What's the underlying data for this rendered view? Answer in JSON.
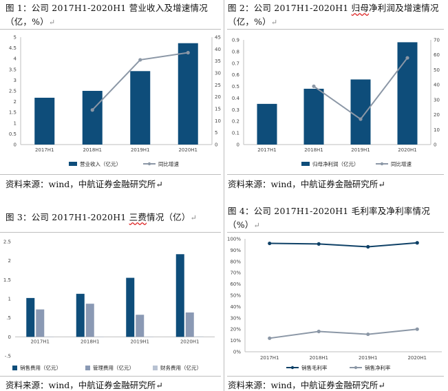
{
  "captions": {
    "fig1": {
      "text": "图 1：公司 2017H1-2020H1 营业收入及增速情况",
      "line2": "（亿，%）"
    },
    "fig2": {
      "pre": "图 2：公司 2017H1-2020H1 ",
      "squig": "归母",
      "post": "净利润及增速情况",
      "line2": "（亿，%）"
    },
    "fig3": {
      "pre": "图 3：公司 2017H1-2020H1 ",
      "squig": "三费",
      "post": "情况（亿）"
    },
    "fig4": {
      "text": "图 4：公司 2017H1-2020H1 毛利率及净利率情况",
      "line2": "（%）"
    },
    "return_mark": "↵"
  },
  "sources": {
    "fig1": "资料来源：wind，中航证券金融研究所",
    "fig2": "资料来源：wind，中航证券金融研究所",
    "fig3": "资料来源：wind，中航证券金融研究所",
    "fig4": "资料来源：wind，中航证券金融研究所"
  },
  "colors": {
    "bar": "#0e4d7a",
    "line": "#8b97a6",
    "bar_light": "#8a99b4",
    "dark_line": "#0e4066"
  },
  "chart_data": [
    {
      "id": "fig1",
      "type": "bar+line",
      "categories": [
        "2017H1",
        "2018H1",
        "2019H1",
        "2020H1"
      ],
      "series": [
        {
          "name": "营业收入（亿元）",
          "axis": "left",
          "kind": "bar",
          "values": [
            2.18,
            2.5,
            3.42,
            4.72
          ]
        },
        {
          "name": "同比增速",
          "axis": "right",
          "kind": "line",
          "values": [
            null,
            14.5,
            35.5,
            38.5
          ]
        }
      ],
      "left": {
        "min": 0,
        "max": 5,
        "ticks": [
          "0",
          "0.5",
          "1",
          "1.5",
          "2",
          "2.5",
          "3",
          "3.5",
          "4",
          "4.5",
          "5"
        ]
      },
      "right": {
        "min": 0,
        "max": 45,
        "ticks": [
          "0",
          "5",
          "10",
          "15",
          "20",
          "25",
          "30",
          "35",
          "40",
          "45"
        ]
      }
    },
    {
      "id": "fig2",
      "type": "bar+line",
      "categories": [
        "2017H1",
        "2018H1",
        "2019H1",
        "2020H1"
      ],
      "series": [
        {
          "name": "归母净利润（亿元）",
          "axis": "left",
          "kind": "bar",
          "values": [
            0.35,
            0.48,
            0.56,
            0.88
          ]
        },
        {
          "name": "同比增速",
          "axis": "right",
          "kind": "line",
          "values": [
            null,
            39,
            17,
            58
          ]
        }
      ],
      "left": {
        "min": 0,
        "max": 0.9,
        "ticks": [
          "0",
          "0.1",
          "0.2",
          "0.3",
          "0.4",
          "0.5",
          "0.6",
          "0.7",
          "0.8",
          "0.9"
        ]
      },
      "right": {
        "min": 0,
        "max": 70,
        "ticks": [
          "0",
          "10",
          "20",
          "30",
          "40",
          "50",
          "60",
          "70"
        ]
      }
    },
    {
      "id": "fig3",
      "type": "bar",
      "categories": [
        "2017H1",
        "2018H1",
        "2019H1",
        "2020H1"
      ],
      "series": [
        {
          "name": "销售费用（亿元）",
          "values": [
            1.02,
            1.13,
            1.55,
            2.17
          ]
        },
        {
          "name": "管理费用（亿元）",
          "values": [
            0.72,
            0.87,
            0.58,
            0.64
          ]
        },
        {
          "name": "财务费用（亿元）",
          "values": [
            0.0,
            0.0,
            0.0,
            0.01
          ]
        }
      ],
      "left": {
        "min": -0.5,
        "max": 2.5,
        "ticks": [
          "-.5",
          "0",
          ".5",
          "1",
          "1.5",
          "2",
          "2.5"
        ]
      }
    },
    {
      "id": "fig4",
      "type": "line",
      "categories": [
        "2017H1",
        "2018H1",
        "2019H1",
        "2020H1"
      ],
      "series": [
        {
          "name": "销售毛利率",
          "values": [
            96,
            95.5,
            93,
            96.5
          ]
        },
        {
          "name": "销售净利率",
          "values": [
            12,
            18,
            15.5,
            20
          ]
        }
      ],
      "left": {
        "min": 0,
        "max": 100,
        "ticks": [
          "0%",
          "10%",
          "20%",
          "30%",
          "40%",
          "50%",
          "60%",
          "70%",
          "80%",
          "90%",
          "100%"
        ]
      }
    }
  ]
}
